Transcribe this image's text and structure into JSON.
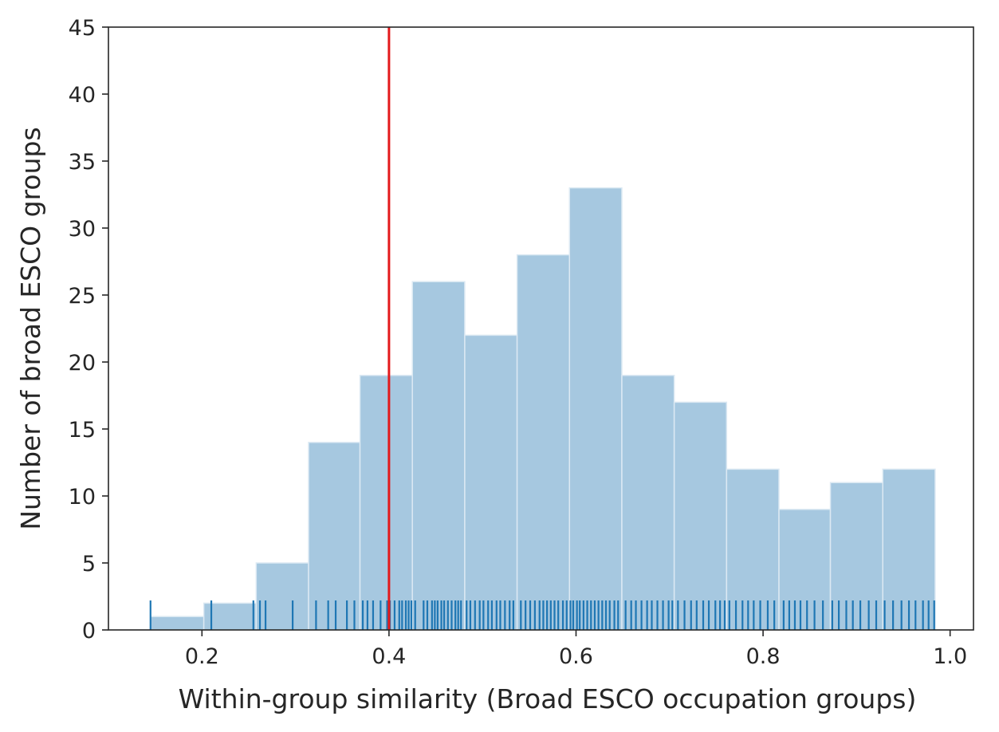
{
  "chart_data": {
    "type": "bar",
    "subtype": "histogram",
    "title": "",
    "xlabel": "Within-group similarity (Broad ESCO occupation groups)",
    "ylabel": "Number of broad ESCO groups",
    "xlim": [
      0.1,
      1.025
    ],
    "ylim": [
      0,
      45
    ],
    "x_ticks": [
      0.2,
      0.4,
      0.6,
      0.8,
      1.0
    ],
    "x_tick_labels": [
      "0.2",
      "0.4",
      "0.6",
      "0.8",
      "1.0"
    ],
    "y_ticks": [
      0,
      5,
      10,
      15,
      20,
      25,
      30,
      35,
      40,
      45
    ],
    "y_tick_labels": [
      "0",
      "5",
      "10",
      "15",
      "20",
      "25",
      "30",
      "35",
      "40",
      "45"
    ],
    "grid": false,
    "bins": [
      {
        "x0": 0.145,
        "x1": 0.202,
        "count": 1
      },
      {
        "x0": 0.202,
        "x1": 0.258,
        "count": 2
      },
      {
        "x0": 0.258,
        "x1": 0.314,
        "count": 5
      },
      {
        "x0": 0.314,
        "x1": 0.369,
        "count": 14
      },
      {
        "x0": 0.369,
        "x1": 0.425,
        "count": 19
      },
      {
        "x0": 0.425,
        "x1": 0.481,
        "count": 26
      },
      {
        "x0": 0.481,
        "x1": 0.537,
        "count": 22
      },
      {
        "x0": 0.537,
        "x1": 0.593,
        "count": 28
      },
      {
        "x0": 0.593,
        "x1": 0.649,
        "count": 33
      },
      {
        "x0": 0.649,
        "x1": 0.705,
        "count": 19
      },
      {
        "x0": 0.705,
        "x1": 0.761,
        "count": 17
      },
      {
        "x0": 0.761,
        "x1": 0.817,
        "count": 12
      },
      {
        "x0": 0.817,
        "x1": 0.872,
        "count": 9
      },
      {
        "x0": 0.872,
        "x1": 0.928,
        "count": 11
      },
      {
        "x0": 0.928,
        "x1": 0.984,
        "count": 12
      }
    ],
    "rug": [
      0.145,
      0.21,
      0.255,
      0.262,
      0.268,
      0.297,
      0.322,
      0.335,
      0.343,
      0.355,
      0.363,
      0.372,
      0.377,
      0.383,
      0.391,
      0.398,
      0.401,
      0.406,
      0.411,
      0.414,
      0.418,
      0.421,
      0.424,
      0.428,
      0.437,
      0.441,
      0.446,
      0.449,
      0.452,
      0.456,
      0.459,
      0.463,
      0.467,
      0.471,
      0.474,
      0.477,
      0.483,
      0.487,
      0.492,
      0.497,
      0.501,
      0.506,
      0.51,
      0.515,
      0.519,
      0.524,
      0.529,
      0.533,
      0.541,
      0.546,
      0.551,
      0.556,
      0.561,
      0.565,
      0.569,
      0.573,
      0.577,
      0.581,
      0.586,
      0.59,
      0.594,
      0.597,
      0.601,
      0.604,
      0.608,
      0.612,
      0.616,
      0.62,
      0.624,
      0.628,
      0.632,
      0.636,
      0.641,
      0.645,
      0.653,
      0.659,
      0.664,
      0.67,
      0.676,
      0.681,
      0.687,
      0.693,
      0.699,
      0.703,
      0.709,
      0.716,
      0.723,
      0.729,
      0.736,
      0.742,
      0.749,
      0.754,
      0.759,
      0.764,
      0.771,
      0.778,
      0.784,
      0.79,
      0.797,
      0.805,
      0.812,
      0.822,
      0.828,
      0.834,
      0.84,
      0.847,
      0.855,
      0.864,
      0.874,
      0.881,
      0.889,
      0.896,
      0.904,
      0.913,
      0.921,
      0.93,
      0.939,
      0.948,
      0.956,
      0.963,
      0.971,
      0.977,
      0.983
    ],
    "vline": {
      "x": 0.4,
      "color": "#e31a1c"
    },
    "colors": {
      "bar": "#a6c8e0",
      "bar_edge": "#dce9f3",
      "rug": "#1f77b4",
      "axis": "#262626"
    }
  }
}
